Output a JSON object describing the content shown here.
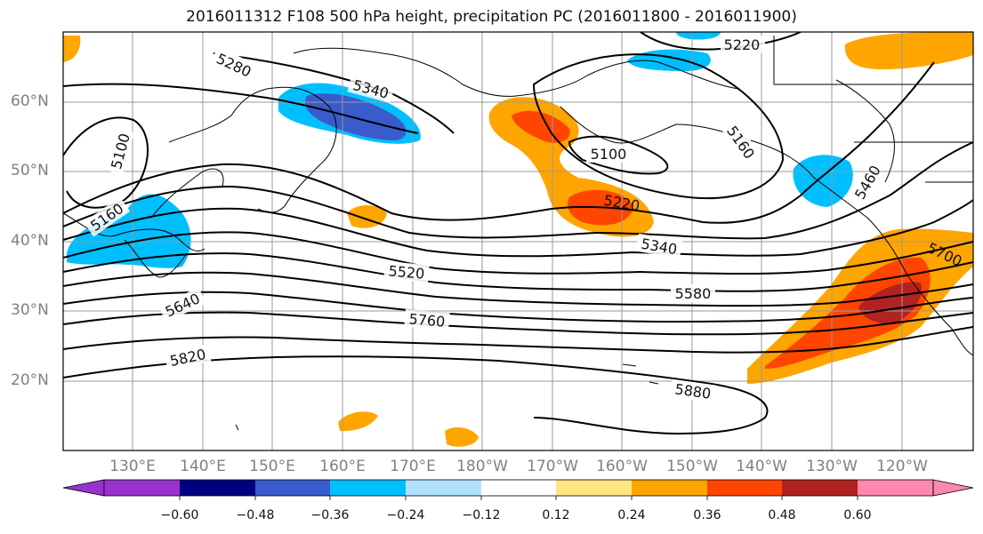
{
  "title": "2016011312 F108 500 hPa height, precipitation PC (2016011800 - 2016011900)",
  "lat_labels": [
    "60°N",
    "50°N",
    "40°N",
    "30°N",
    "20°N"
  ],
  "lon_labels": [
    "130°E",
    "140°E",
    "150°E",
    "160°E",
    "170°E",
    "180°W",
    "170°W",
    "160°W",
    "150°W",
    "140°W",
    "130°W",
    "120°W"
  ],
  "contour_labels": [
    "5280",
    "5340",
    "5220",
    "5100",
    "5160",
    "5100",
    "5220",
    "5340",
    "5160",
    "5460",
    "5520",
    "5580",
    "5640",
    "5700",
    "5760",
    "5820",
    "5880"
  ],
  "colorbar": {
    "ticks": [
      "−0.60",
      "−0.48",
      "−0.36",
      "−0.24",
      "−0.12",
      "0.12",
      "0.24",
      "0.36",
      "0.48",
      "0.60"
    ],
    "colors": [
      "#9932cc",
      "#000080",
      "#3a5bcc",
      "#00bfff",
      "#b0e2ff",
      "#ffffff",
      "#ffe680",
      "#ffa500",
      "#ff4500",
      "#b22222",
      "#ff88b0"
    ]
  }
}
